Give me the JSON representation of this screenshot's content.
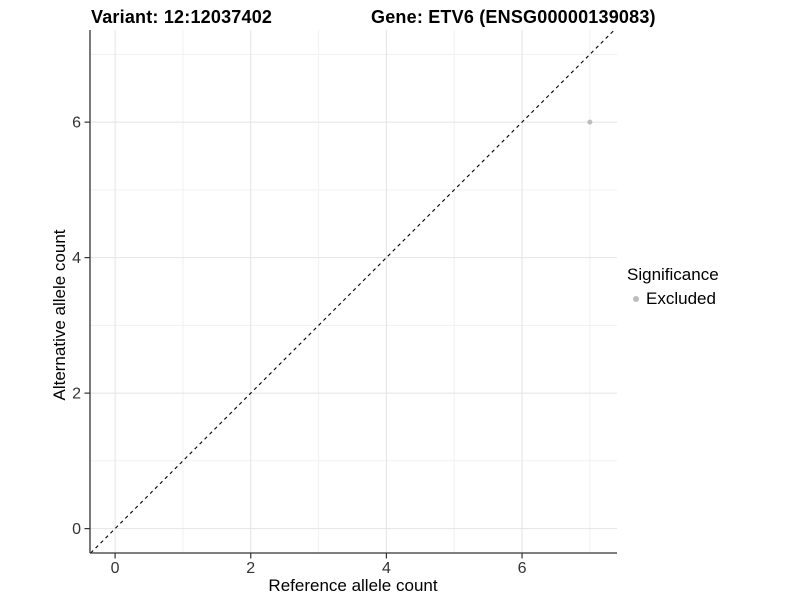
{
  "chart_data": {
    "type": "scatter",
    "title_left": "Variant: 12:12037402",
    "title_right": "Gene: ETV6 (ENSG00000139083)",
    "xlabel": "Reference allele count",
    "ylabel": "Alternative allele count",
    "xlim": [
      -0.37,
      7.4
    ],
    "ylim": [
      -0.36,
      7.36
    ],
    "x_ticks": [
      0,
      2,
      4,
      6
    ],
    "y_ticks": [
      0,
      2,
      4,
      6
    ],
    "x_minor_ticks": [
      1,
      3,
      5,
      7
    ],
    "y_minor_ticks": [
      1,
      3,
      5,
      7
    ],
    "grid": "major+minor",
    "reference_line": {
      "type": "identity",
      "slope": 1,
      "intercept": 0,
      "style": "dashed",
      "color": "#000000"
    },
    "series": [
      {
        "name": "Excluded",
        "color": "#bdbdbd",
        "points": [
          {
            "x": 7,
            "y": 6
          }
        ]
      }
    ],
    "legend": {
      "title": "Significance",
      "position": "right",
      "entries": [
        {
          "label": "Excluded",
          "color": "#bdbdbd"
        }
      ]
    }
  },
  "colors": {
    "background": "#ffffff",
    "grid_major": "#e4e4e4",
    "grid_minor": "#f1f1f1",
    "axis_line": "#333333",
    "tick_mark": "#333333",
    "tick_label": "#333333",
    "title_text": "#000000",
    "point": "#bdbdbd",
    "reference_line": "#000000"
  }
}
